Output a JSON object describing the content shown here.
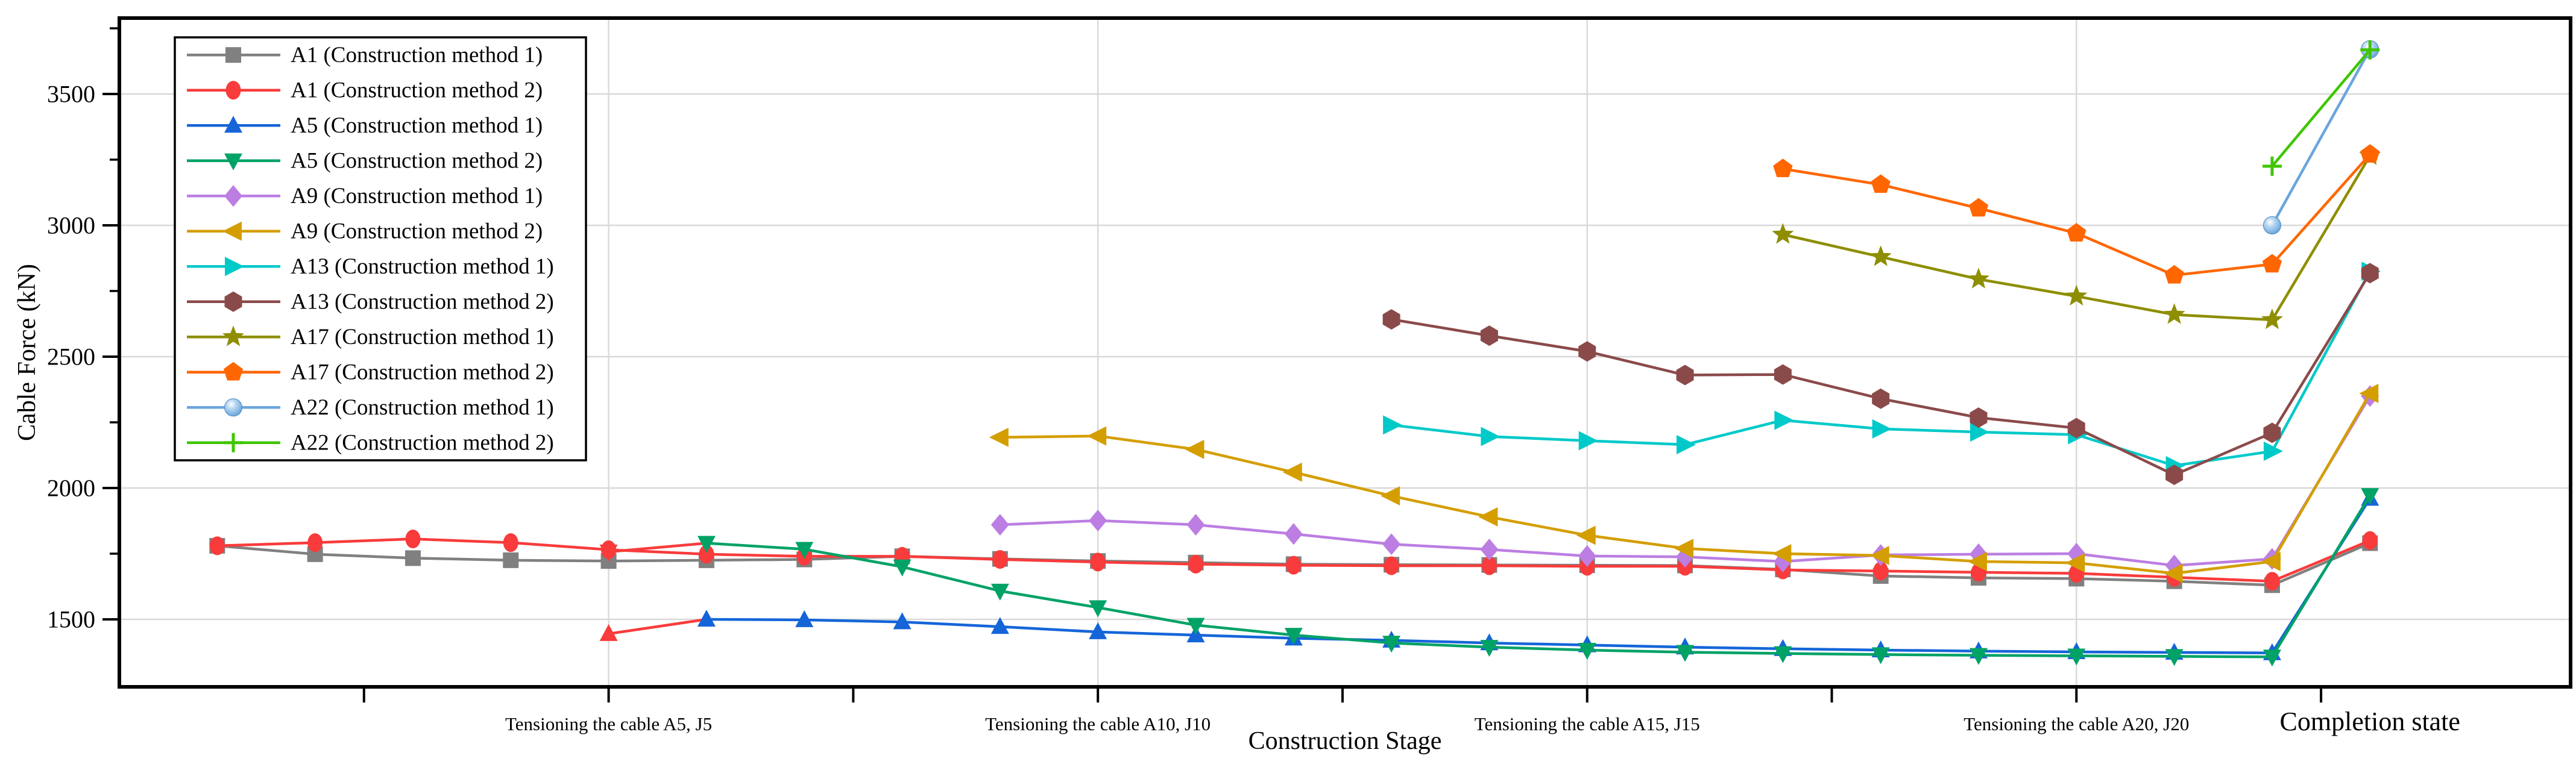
{
  "chart_data": {
    "type": "line",
    "title": "",
    "xlabel": "Construction Stage",
    "ylabel": "Cable Force (kN)",
    "ylim": [
      1243,
      3789
    ],
    "xlim_stages": [
      0,
      25.05
    ],
    "grid_on": true,
    "grid_color": "#d9d9d9",
    "legend_position": "upper-left",
    "y_major_ticks": [
      1500,
      2000,
      2500,
      3000,
      3500
    ],
    "y_minor_ticks": [
      1750,
      2250,
      2750,
      3250,
      3750
    ],
    "x_ticks_stages": [
      2.5,
      5,
      7.5,
      10,
      12.5,
      15,
      17.5,
      20,
      22.5
    ],
    "x_grid_stages": [
      5,
      10,
      15,
      20
    ],
    "x_axis_labels": [
      {
        "stage": 5,
        "text": "Tensioning the cable A5, J5",
        "emphasis": false
      },
      {
        "stage": 10,
        "text": "Tensioning the cable A10, J10",
        "emphasis": false
      },
      {
        "stage": 15,
        "text": "Tensioning the cable A15, J15",
        "emphasis": false
      },
      {
        "stage": 20,
        "text": "Tensioning the cable A20, J20",
        "emphasis": false
      },
      {
        "stage": 23,
        "text": "Completion state",
        "emphasis": true
      }
    ],
    "series": [
      {
        "key": "A1-method1",
        "label": "A1 (Construction method 1)",
        "color": "#808080",
        "marker": "square",
        "points": [
          [
            1,
            1780
          ],
          [
            2,
            1748
          ],
          [
            3,
            1733
          ],
          [
            4,
            1725
          ],
          [
            5,
            1722
          ],
          [
            6,
            1725
          ],
          [
            7,
            1728
          ],
          [
            8,
            1740
          ],
          [
            9,
            1730
          ],
          [
            10,
            1722
          ],
          [
            11,
            1716
          ],
          [
            12,
            1710
          ],
          [
            13,
            1708
          ],
          [
            14,
            1707
          ],
          [
            15,
            1706
          ],
          [
            16,
            1705
          ],
          [
            17,
            1690
          ],
          [
            18,
            1665
          ],
          [
            19,
            1658
          ],
          [
            20,
            1655
          ],
          [
            21,
            1645
          ],
          [
            22,
            1630
          ],
          [
            23,
            1790
          ]
        ]
      },
      {
        "key": "A1-method2",
        "label": "A1 (Construction method 2)",
        "color": "#F93B3B",
        "marker": "circle",
        "points": [
          [
            1,
            1780
          ],
          [
            2,
            1792
          ],
          [
            3,
            1806
          ],
          [
            4,
            1792
          ],
          [
            5,
            1765
          ],
          [
            6,
            1748
          ],
          [
            7,
            1740
          ],
          [
            8,
            1740
          ],
          [
            9,
            1728
          ],
          [
            10,
            1718
          ],
          [
            11,
            1710
          ],
          [
            12,
            1706
          ],
          [
            13,
            1704
          ],
          [
            14,
            1704
          ],
          [
            15,
            1702
          ],
          [
            16,
            1702
          ],
          [
            17,
            1688
          ],
          [
            18,
            1684
          ],
          [
            19,
            1679
          ],
          [
            20,
            1675
          ],
          [
            21,
            1660
          ],
          [
            22,
            1645
          ],
          [
            23,
            1800
          ]
        ]
      },
      {
        "key": "A5-method1",
        "label": "A5 (Construction method 1)",
        "color": "#1565D8",
        "marker": "triangle-up",
        "first_color": "#F93B3B",
        "points": [
          [
            5,
            1445
          ],
          [
            6,
            1500
          ],
          [
            7,
            1498
          ],
          [
            8,
            1490
          ],
          [
            9,
            1472
          ],
          [
            10,
            1452
          ],
          [
            11,
            1440
          ],
          [
            12,
            1428
          ],
          [
            13,
            1420
          ],
          [
            14,
            1410
          ],
          [
            15,
            1402
          ],
          [
            16,
            1394
          ],
          [
            17,
            1388
          ],
          [
            18,
            1383
          ],
          [
            19,
            1379
          ],
          [
            20,
            1376
          ],
          [
            21,
            1374
          ],
          [
            22,
            1372
          ],
          [
            23,
            1960
          ]
        ]
      },
      {
        "key": "A5-method2",
        "label": "A5 (Construction method 2)",
        "color": "#00A266",
        "marker": "triangle-down",
        "first_color": "#F93B3B",
        "points": [
          [
            5,
            1757
          ],
          [
            6,
            1790
          ],
          [
            7,
            1767
          ],
          [
            8,
            1700
          ],
          [
            9,
            1608
          ],
          [
            10,
            1545
          ],
          [
            11,
            1478
          ],
          [
            12,
            1440
          ],
          [
            13,
            1410
          ],
          [
            14,
            1394
          ],
          [
            15,
            1383
          ],
          [
            16,
            1375
          ],
          [
            17,
            1370
          ],
          [
            18,
            1366
          ],
          [
            19,
            1363
          ],
          [
            20,
            1361
          ],
          [
            21,
            1359
          ],
          [
            22,
            1357
          ],
          [
            23,
            1972
          ]
        ]
      },
      {
        "key": "A9-method1",
        "label": "A9 (Construction method 1)",
        "color": "#BC7EE2",
        "marker": "diamond",
        "points": [
          [
            9,
            1860
          ],
          [
            10,
            1876
          ],
          [
            11,
            1860
          ],
          [
            12,
            1825
          ],
          [
            13,
            1786
          ],
          [
            14,
            1766
          ],
          [
            15,
            1741
          ],
          [
            16,
            1738
          ],
          [
            17,
            1720
          ],
          [
            18,
            1745
          ],
          [
            19,
            1748
          ],
          [
            20,
            1750
          ],
          [
            21,
            1705
          ],
          [
            22,
            1730
          ],
          [
            23,
            2350
          ]
        ]
      },
      {
        "key": "A9-method2",
        "label": "A9 (Construction method 2)",
        "color": "#D49E00",
        "marker": "triangle-left",
        "points": [
          [
            9,
            2193
          ],
          [
            10,
            2198
          ],
          [
            11,
            2147
          ],
          [
            12,
            2060
          ],
          [
            13,
            1970
          ],
          [
            14,
            1890
          ],
          [
            15,
            1820
          ],
          [
            16,
            1770
          ],
          [
            17,
            1750
          ],
          [
            18,
            1743
          ],
          [
            19,
            1720
          ],
          [
            20,
            1715
          ],
          [
            21,
            1675
          ],
          [
            22,
            1720
          ],
          [
            23,
            2360
          ]
        ]
      },
      {
        "key": "A13-method1",
        "label": "A13 (Construction method 1)",
        "color": "#00C9C9",
        "marker": "triangle-right",
        "points": [
          [
            13,
            2240
          ],
          [
            14,
            2196
          ],
          [
            15,
            2180
          ],
          [
            16,
            2165
          ],
          [
            17,
            2258
          ],
          [
            18,
            2225
          ],
          [
            19,
            2213
          ],
          [
            20,
            2203
          ],
          [
            21,
            2085
          ],
          [
            22,
            2140
          ],
          [
            23,
            2825
          ]
        ]
      },
      {
        "key": "A13-method2",
        "label": "A13 (Construction method 2)",
        "color": "#8B4A4A",
        "marker": "hexagon",
        "points": [
          [
            13,
            2642
          ],
          [
            14,
            2580
          ],
          [
            15,
            2520
          ],
          [
            16,
            2430
          ],
          [
            17,
            2432
          ],
          [
            18,
            2340
          ],
          [
            19,
            2268
          ],
          [
            20,
            2228
          ],
          [
            21,
            2050
          ],
          [
            22,
            2210
          ],
          [
            23,
            2818
          ]
        ]
      },
      {
        "key": "A17-method1",
        "label": "A17 (Construction method 1)",
        "color": "#8E8E00",
        "marker": "star",
        "points": [
          [
            17,
            2965
          ],
          [
            18,
            2880
          ],
          [
            19,
            2795
          ],
          [
            20,
            2730
          ],
          [
            21,
            2660
          ],
          [
            22,
            2640
          ],
          [
            23,
            3265
          ]
        ]
      },
      {
        "key": "A17-method2",
        "label": "A17 (Construction method 2)",
        "color": "#FF6600",
        "marker": "pentagon",
        "points": [
          [
            17,
            3215
          ],
          [
            18,
            3155
          ],
          [
            19,
            3065
          ],
          [
            20,
            2970
          ],
          [
            21,
            2810
          ],
          [
            22,
            2852
          ],
          [
            23,
            3270
          ]
        ]
      },
      {
        "key": "A22-method1",
        "label": "A22 (Construction method 1)",
        "color": "#6BA5DE",
        "marker": "sphere",
        "points": [
          [
            22,
            3000
          ],
          [
            23,
            3670
          ]
        ]
      },
      {
        "key": "A22-method2",
        "label": "A22 (Construction method 2)",
        "color": "#3FC601",
        "marker": "plus",
        "points": [
          [
            22,
            3225
          ],
          [
            23,
            3668
          ]
        ]
      }
    ]
  }
}
